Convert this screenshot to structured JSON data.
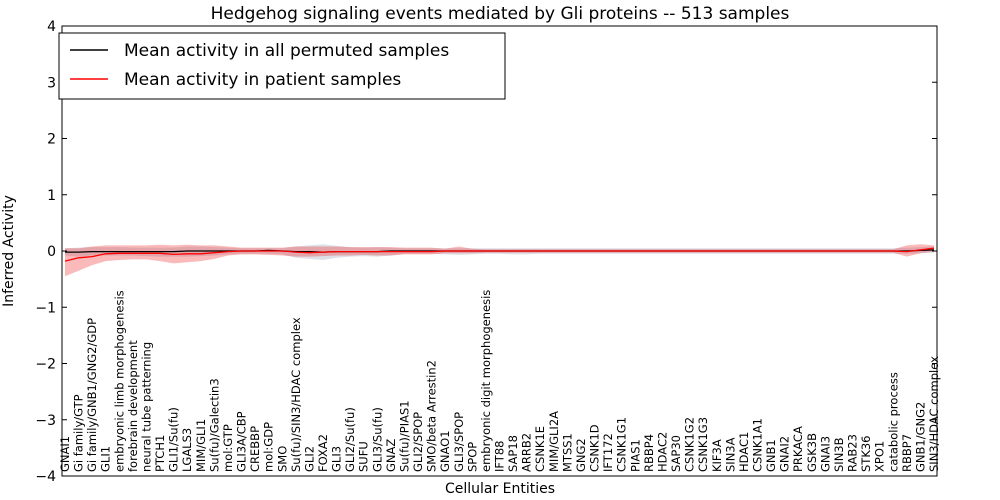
{
  "chart_data": {
    "type": "line",
    "title": "Hedgehog signaling events mediated by Gli proteins -- 513 samples",
    "xlabel": "Cellular Entities",
    "ylabel": "Inferred Activity",
    "ylim": [
      -4,
      4
    ],
    "yticks": [
      -4,
      -3,
      -2,
      -1,
      0,
      1,
      2,
      3,
      4
    ],
    "grid": false,
    "legend_position": "top-left",
    "categories": [
      "GNAI1",
      "Gi family/GTP",
      "Gi family/GNB1/GNG2/GDP",
      "GLI1",
      "embryonic limb morphogenesis",
      "forebrain development",
      "neural tube patterning",
      "PTCH1",
      "GLI1/Su(fu)",
      "LGALS3",
      "MIM/GLI1",
      "Su(fu)/Galectin3",
      "mol:GTP",
      "GLI3A/CBP",
      "CREBBP",
      "mol:GDP",
      "SMO",
      "Su(fu)/SIN3/HDAC complex",
      "GLI2",
      "FOXA2",
      "GLI3",
      "GLI2/Su(fu)",
      "SUFU",
      "GLI3/Su(fu)",
      "GNAZ",
      "Su(fu)/PIAS1",
      "GLI2/SPOP",
      "SMO/beta Arrestin2",
      "GNAO1",
      "GLI3/SPOP",
      "SPOP",
      "embryonic digit morphogenesis",
      "IFT88",
      "SAP18",
      "ARRB2",
      "CSNK1E",
      "MIM/GLI2A",
      "MTSS1",
      "GNG2",
      "CSNK1D",
      "IFT172",
      "CSNK1G1",
      "PIAS1",
      "RBBP4",
      "HDAC2",
      "SAP30",
      "CSNK1G2",
      "CSNK1G3",
      "KIF3A",
      "SIN3A",
      "HDAC1",
      "CSNK1A1",
      "GNB1",
      "GNAI2",
      "PRKACA",
      "GSK3B",
      "GNAI3",
      "SIN3B",
      "RAB23",
      "STK36",
      "XPO1",
      "catabolic process",
      "RBBP7",
      "GNB1/GNG2",
      "SIN3/HDAC complex"
    ],
    "series": [
      {
        "name": "Mean activity in all permuted samples",
        "color": "#000000",
        "values": [
          -0.02,
          -0.02,
          -0.01,
          -0.01,
          -0.01,
          -0.01,
          -0.01,
          -0.01,
          -0.01,
          0.0,
          0.0,
          0.0,
          0.0,
          0.0,
          0.0,
          0.01,
          0.0,
          -0.01,
          -0.01,
          -0.02,
          -0.01,
          -0.01,
          -0.01,
          -0.01,
          0.0,
          0.0,
          0.0,
          0.0,
          0.0,
          0.0,
          0.0,
          0.0,
          0.0,
          0.0,
          0.0,
          0.0,
          0.0,
          0.0,
          0.0,
          0.0,
          0.0,
          0.0,
          0.0,
          0.0,
          0.0,
          0.0,
          0.0,
          0.0,
          0.0,
          0.0,
          0.0,
          0.0,
          0.0,
          0.0,
          0.0,
          0.0,
          0.0,
          0.0,
          0.0,
          0.0,
          0.0,
          0.0,
          0.0,
          0.01,
          0.02
        ],
        "lower": [
          -0.08,
          -0.1,
          -0.08,
          -0.08,
          -0.08,
          -0.08,
          -0.09,
          -0.1,
          -0.1,
          -0.1,
          -0.09,
          -0.08,
          -0.06,
          -0.05,
          -0.05,
          -0.05,
          -0.06,
          -0.12,
          -0.14,
          -0.16,
          -0.12,
          -0.1,
          -0.09,
          -0.1,
          -0.08,
          -0.05,
          -0.05,
          -0.05,
          -0.06,
          -0.07,
          -0.06,
          -0.05,
          -0.05,
          -0.06,
          -0.06,
          -0.05,
          -0.05,
          -0.05,
          -0.05,
          -0.05,
          -0.05,
          -0.05,
          -0.05,
          -0.05,
          -0.05,
          -0.05,
          -0.05,
          -0.05,
          -0.05,
          -0.05,
          -0.05,
          -0.05,
          -0.05,
          -0.05,
          -0.05,
          -0.05,
          -0.05,
          -0.05,
          -0.05,
          -0.05,
          -0.05,
          -0.05,
          -0.05,
          -0.04,
          -0.03
        ],
        "upper": [
          0.05,
          0.06,
          0.07,
          0.07,
          0.07,
          0.06,
          0.06,
          0.06,
          0.06,
          0.08,
          0.08,
          0.07,
          0.06,
          0.05,
          0.05,
          0.05,
          0.05,
          0.08,
          0.1,
          0.12,
          0.09,
          0.07,
          0.06,
          0.07,
          0.06,
          0.05,
          0.05,
          0.05,
          0.05,
          0.05,
          0.05,
          0.05,
          0.05,
          0.05,
          0.05,
          0.05,
          0.05,
          0.05,
          0.05,
          0.05,
          0.05,
          0.05,
          0.05,
          0.05,
          0.05,
          0.05,
          0.05,
          0.05,
          0.05,
          0.05,
          0.05,
          0.05,
          0.05,
          0.05,
          0.05,
          0.05,
          0.05,
          0.05,
          0.05,
          0.05,
          0.05,
          0.05,
          0.06,
          0.07,
          0.08
        ]
      },
      {
        "name": "Mean activity in patient samples",
        "color": "#ff0000",
        "values": [
          -0.18,
          -0.12,
          -0.1,
          -0.05,
          -0.04,
          -0.04,
          -0.04,
          -0.04,
          -0.06,
          -0.05,
          -0.05,
          -0.03,
          -0.01,
          0.0,
          0.0,
          0.0,
          0.0,
          -0.02,
          -0.03,
          -0.02,
          -0.01,
          -0.01,
          -0.01,
          -0.01,
          -0.01,
          -0.01,
          -0.01,
          -0.01,
          0.0,
          0.0,
          0.0,
          0.0,
          0.0,
          0.0,
          0.0,
          0.0,
          0.0,
          0.0,
          0.0,
          0.0,
          0.0,
          0.0,
          0.0,
          0.0,
          0.0,
          0.0,
          0.0,
          0.0,
          0.0,
          0.0,
          0.0,
          0.0,
          0.0,
          0.0,
          0.0,
          0.0,
          0.0,
          0.0,
          0.0,
          0.0,
          0.0,
          0.0,
          -0.01,
          0.02,
          0.05
        ],
        "lower": [
          -0.45,
          -0.35,
          -0.25,
          -0.18,
          -0.16,
          -0.15,
          -0.15,
          -0.18,
          -0.22,
          -0.2,
          -0.18,
          -0.14,
          -0.08,
          -0.06,
          -0.06,
          -0.07,
          -0.08,
          -0.1,
          -0.1,
          -0.09,
          -0.08,
          -0.08,
          -0.07,
          -0.08,
          -0.08,
          -0.06,
          -0.06,
          -0.06,
          -0.04,
          -0.04,
          -0.04,
          -0.03,
          -0.03,
          -0.03,
          -0.03,
          -0.03,
          -0.03,
          -0.03,
          -0.03,
          -0.03,
          -0.03,
          -0.03,
          -0.03,
          -0.03,
          -0.03,
          -0.03,
          -0.03,
          -0.03,
          -0.03,
          -0.03,
          -0.03,
          -0.03,
          -0.03,
          -0.03,
          -0.03,
          -0.03,
          -0.03,
          -0.03,
          -0.03,
          -0.03,
          -0.03,
          -0.03,
          -0.1,
          -0.04,
          -0.01
        ],
        "upper": [
          0.05,
          0.05,
          0.08,
          0.1,
          0.1,
          0.1,
          0.1,
          0.11,
          0.1,
          0.11,
          0.1,
          0.1,
          0.08,
          0.06,
          0.06,
          0.06,
          0.06,
          0.08,
          0.08,
          0.08,
          0.08,
          0.07,
          0.07,
          0.07,
          0.07,
          0.06,
          0.06,
          0.06,
          0.04,
          0.08,
          0.04,
          0.03,
          0.03,
          0.03,
          0.03,
          0.03,
          0.03,
          0.03,
          0.03,
          0.03,
          0.03,
          0.03,
          0.03,
          0.03,
          0.03,
          0.03,
          0.03,
          0.03,
          0.03,
          0.03,
          0.03,
          0.03,
          0.03,
          0.03,
          0.03,
          0.03,
          0.03,
          0.03,
          0.03,
          0.03,
          0.03,
          0.03,
          0.1,
          0.12,
          0.1
        ]
      }
    ]
  }
}
